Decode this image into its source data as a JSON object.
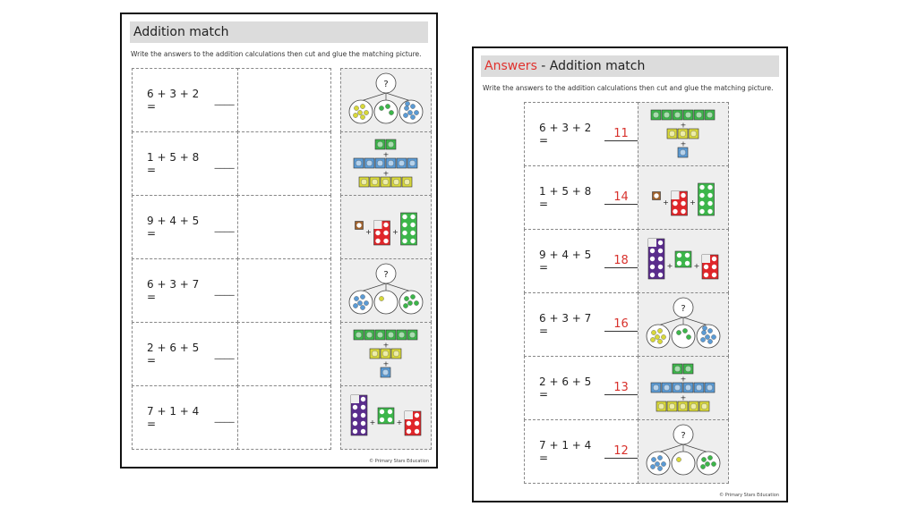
{
  "worksheet": {
    "title": "Addition match",
    "instruction": "Write the answers to the addition calculations then cut and glue the matching picture.",
    "rows": [
      {
        "equation": "6 + 3 + 2 =",
        "blank": "____"
      },
      {
        "equation": "1 + 5 + 8 =",
        "blank": "____"
      },
      {
        "equation": "9 + 4 + 5 =",
        "blank": "____"
      },
      {
        "equation": "6 + 3 + 7 =",
        "blank": "____"
      },
      {
        "equation": "2 + 6 + 5 =",
        "blank": "____"
      },
      {
        "equation": "7 + 1 + 4 =",
        "blank": "____"
      }
    ],
    "pictures": [
      "part-whole",
      "rods",
      "cubes",
      "part-whole",
      "rods",
      "cubes"
    ],
    "copyright": "© Primary Stars Education"
  },
  "answers": {
    "title_red": "Answers",
    "title_rest": " - Addition match",
    "instruction": "Write the answers to the addition calculations then cut and glue the matching picture.",
    "rows": [
      {
        "equation": "6 + 3 + 2 =",
        "answer": "11"
      },
      {
        "equation": "1 + 5 + 8 =",
        "answer": "14"
      },
      {
        "equation": "9 + 4 + 5 =",
        "answer": "18"
      },
      {
        "equation": "6 + 3 + 7 =",
        "answer": "16"
      },
      {
        "equation": "2 + 6 + 5 =",
        "answer": "13"
      },
      {
        "equation": "7 + 1 + 4 =",
        "answer": "12"
      }
    ],
    "pictures": [
      "rods",
      "cubes",
      "cubes",
      "part-whole",
      "rods",
      "part-whole"
    ],
    "copyright": "© Primary Stars Education"
  },
  "symbols": {
    "question": "?",
    "plus": "+"
  },
  "colors": {
    "answer_red": "#d8322d",
    "green": "#3cb64a",
    "blue": "#5b9bd5",
    "yellow": "#d8d83a",
    "red": "#e0262a",
    "purple": "#5a2d8c",
    "brown": "#a0622d"
  }
}
